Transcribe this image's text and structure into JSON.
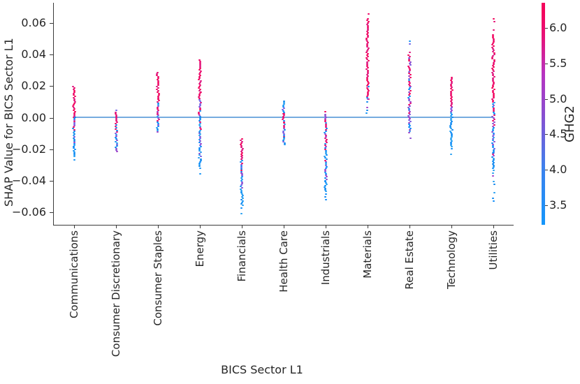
{
  "chart_data": {
    "type": "scatter",
    "title": "",
    "xlabel": "BICS Sector L1",
    "ylabel": "SHAP Value for BICS Sector L1",
    "ylim": [
      -0.068,
      0.073
    ],
    "grid": false,
    "legend_position": "right-colorbar",
    "baseline_y": 0.0,
    "baseline_color": "#76abdf",
    "axis_color": "#3a3a3a",
    "text_color": "#262626",
    "yticks": {
      "values": [
        0.06,
        0.04,
        0.02,
        0,
        -0.02,
        -0.04,
        -0.06
      ],
      "labels": [
        "0.06",
        "0.04",
        "0.02",
        "0.00",
        "−0.02",
        "−0.04",
        "−0.06"
      ]
    },
    "categories": [
      "Communications",
      "Consumer Discretionary",
      "Consumer Staples",
      "Energy",
      "Financials",
      "Health Care",
      "Industrials",
      "Materials",
      "Real Estate",
      "Technology",
      "Utilities"
    ],
    "series": [
      {
        "name": "Communications",
        "shap_max": 0.02,
        "shap_min": -0.027,
        "segments": [
          [
            0.02,
            0.0005,
            "pink",
            "dense"
          ],
          [
            0.0005,
            -0.008,
            "pinkMix",
            "dense"
          ],
          [
            -0.008,
            -0.018,
            "purpleBlue",
            "dense"
          ],
          [
            -0.018,
            -0.0245,
            "blue",
            "dense"
          ],
          [
            -0.0262,
            -0.027,
            "blue",
            "sparse"
          ]
        ]
      },
      {
        "name": "Consumer Discretionary",
        "shap_max": 0.005,
        "shap_min": -0.021,
        "segments": [
          [
            0.005,
            0.0042,
            "purple",
            "sparse"
          ],
          [
            0.0038,
            -0.004,
            "pink",
            "dense"
          ],
          [
            -0.004,
            -0.012,
            "mix",
            "dense"
          ],
          [
            -0.012,
            -0.019,
            "purpleBlue",
            "dense"
          ],
          [
            -0.019,
            -0.021,
            "purple",
            "dense"
          ]
        ]
      },
      {
        "name": "Consumer Staples",
        "shap_max": 0.029,
        "shap_min": -0.009,
        "segments": [
          [
            0.029,
            0.012,
            "pink",
            "dense"
          ],
          [
            0.012,
            0.002,
            "pinkMix",
            "dense"
          ],
          [
            0.002,
            -0.004,
            "mix",
            "dense"
          ],
          [
            -0.004,
            -0.009,
            "purpleBlue",
            "dense"
          ]
        ]
      },
      {
        "name": "Energy",
        "shap_max": 0.037,
        "shap_min": -0.036,
        "segments": [
          [
            0.037,
            0.016,
            "pink",
            "dense"
          ],
          [
            0.016,
            0.002,
            "pinkMix",
            "dense"
          ],
          [
            0.002,
            -0.01,
            "mix",
            "dense"
          ],
          [
            -0.01,
            -0.025,
            "purpleBlue",
            "dense"
          ],
          [
            -0.025,
            -0.0305,
            "blue",
            "dense"
          ],
          [
            -0.0315,
            -0.036,
            "blue",
            "sparse"
          ]
        ]
      },
      {
        "name": "Financials",
        "shap_max": -0.013,
        "shap_min": -0.062,
        "segments": [
          [
            -0.013,
            -0.024,
            "pink",
            "dense"
          ],
          [
            -0.024,
            -0.035,
            "mix",
            "dense"
          ],
          [
            -0.035,
            -0.047,
            "purpleBlue",
            "dense"
          ],
          [
            -0.047,
            -0.0555,
            "blue",
            "dense"
          ],
          [
            -0.0565,
            -0.062,
            "blue",
            "sparse"
          ]
        ]
      },
      {
        "name": "Health Care",
        "shap_max": 0.011,
        "shap_min": -0.017,
        "segments": [
          [
            0.011,
            0.003,
            "blueMix",
            "dense"
          ],
          [
            0.003,
            -0.003,
            "pinkMix",
            "dense"
          ],
          [
            -0.003,
            -0.012,
            "mix",
            "dense"
          ],
          [
            -0.012,
            -0.017,
            "purpleBlue",
            "dense"
          ]
        ]
      },
      {
        "name": "Industrials",
        "shap_max": 0.004,
        "shap_min": -0.053,
        "segments": [
          [
            0.004,
            0.0032,
            "pink",
            "sparse"
          ],
          [
            0.0025,
            -0.028,
            "mix",
            "dense"
          ],
          [
            -0.028,
            -0.04,
            "purpleBlue",
            "dense"
          ],
          [
            -0.04,
            -0.0465,
            "blue",
            "dense"
          ],
          [
            -0.048,
            -0.053,
            "blue",
            "sparse"
          ]
        ]
      },
      {
        "name": "Materials",
        "shap_max": 0.066,
        "shap_min": 0.003,
        "segments": [
          [
            0.066,
            0.0648,
            "pink",
            "sparse"
          ],
          [
            0.063,
            0.02,
            "pink",
            "dense"
          ],
          [
            0.02,
            0.012,
            "pinkMix",
            "dense"
          ],
          [
            0.012,
            0.003,
            "purpleBlue",
            "sparse"
          ]
        ]
      },
      {
        "name": "Real Estate",
        "shap_max": 0.049,
        "shap_min": -0.013,
        "segments": [
          [
            0.049,
            0.04,
            "pinkMix",
            "sparse"
          ],
          [
            0.04,
            0.02,
            "pinkMix",
            "dense"
          ],
          [
            0.02,
            0.0,
            "mix",
            "dense"
          ],
          [
            0.0,
            -0.008,
            "purpleBlue",
            "dense"
          ],
          [
            -0.009,
            -0.013,
            "purple",
            "sparse"
          ]
        ]
      },
      {
        "name": "Technology",
        "shap_max": 0.026,
        "shap_min": -0.023,
        "segments": [
          [
            0.026,
            0.007,
            "pink",
            "dense"
          ],
          [
            0.007,
            0.0035,
            "purple",
            "dense"
          ],
          [
            0.0035,
            -0.018,
            "blue",
            "dense"
          ],
          [
            -0.019,
            -0.023,
            "blue",
            "sparse"
          ]
        ]
      },
      {
        "name": "Utilities",
        "shap_max": 0.063,
        "shap_min": -0.053,
        "segments": [
          [
            0.063,
            0.055,
            "pink",
            "sparse"
          ],
          [
            0.053,
            0.01,
            "pink",
            "dense"
          ],
          [
            0.01,
            -0.005,
            "mix",
            "dense"
          ],
          [
            -0.005,
            -0.022,
            "purpleBlue",
            "dense"
          ],
          [
            -0.022,
            -0.032,
            "blueMix",
            "dense"
          ],
          [
            -0.033,
            -0.044,
            "purpleBlue",
            "sparse"
          ],
          [
            -0.047,
            -0.053,
            "blue",
            "sparse"
          ]
        ]
      }
    ],
    "palette": {
      "pink": [
        "#f4035b",
        "#ee0766",
        "#e60d72",
        "#db1580"
      ],
      "blue": [
        "#0b8cfa",
        "#1795f6",
        "#27a0f1",
        "#0d86ee"
      ],
      "purple": [
        "#8a4dd0",
        "#7b5ae0",
        "#9d3fc9",
        "#6f63e8"
      ]
    },
    "colorbar": {
      "label": "GHG2",
      "tick_labels": [
        "6.0",
        "5.5",
        "5.0",
        "4.5",
        "4.0",
        "3.5"
      ],
      "tick_values": [
        6.0,
        5.5,
        5.0,
        4.5,
        4.0,
        3.5
      ],
      "vmin": 3.22,
      "vmax": 6.35,
      "color_low": "#1496fb",
      "color_mid": "#8a4dd0",
      "color_high": "#f4045c"
    }
  }
}
